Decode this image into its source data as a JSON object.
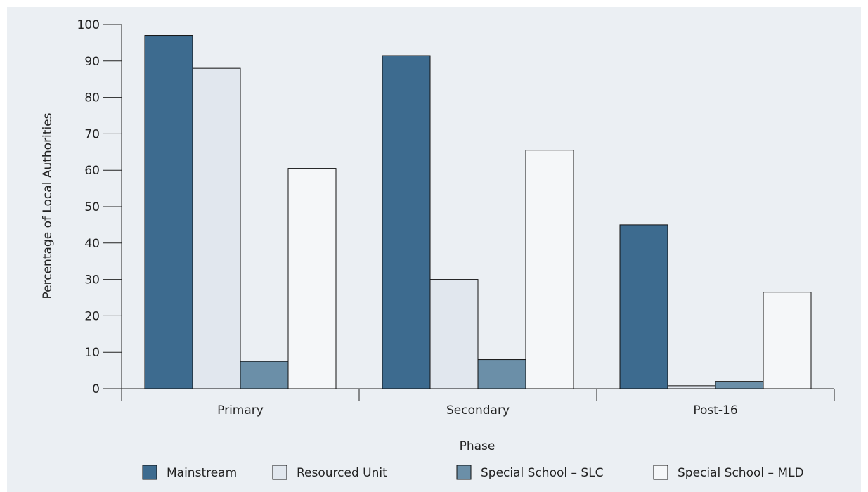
{
  "chart_data": {
    "type": "bar",
    "title": "",
    "xlabel": "Phase",
    "ylabel": "Percentage of Local Authorities",
    "ylim": [
      0,
      100
    ],
    "yticks": [
      0,
      10,
      20,
      30,
      40,
      50,
      60,
      70,
      80,
      90,
      100
    ],
    "categories": [
      "Primary",
      "Secondary",
      "Post-16"
    ],
    "series": [
      {
        "name": "Mainstream",
        "values": [
          97,
          91.5,
          45
        ],
        "color": "#3d6b8f"
      },
      {
        "name": "Resourced Unit",
        "values": [
          88,
          30,
          0.8
        ],
        "color": "#e1e7ee"
      },
      {
        "name": "Special School – SLC",
        "values": [
          7.5,
          8,
          2
        ],
        "color": "#6b8fa8"
      },
      {
        "name": "Special School – MLD",
        "values": [
          60.5,
          65.5,
          26.5
        ],
        "color": "#f5f7f9"
      }
    ],
    "grid": false,
    "legend_position": "bottom",
    "background": "#ebeff3"
  }
}
